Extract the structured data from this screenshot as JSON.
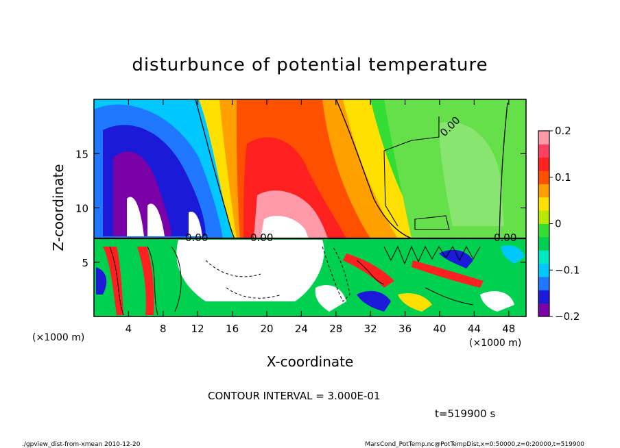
{
  "chart_data": {
    "type": "heatmap",
    "title": "disturbunce of potential temperature",
    "xlabel": "X-coordinate",
    "ylabel": "Z-coordinate",
    "x_unit": "(×1000 m)",
    "y_unit": "(×1000 m)",
    "xlim": [
      0,
      50
    ],
    "ylim": [
      0,
      20
    ],
    "x_ticks": [
      "4",
      "8",
      "12",
      "16",
      "20",
      "24",
      "28",
      "32",
      "36",
      "40",
      "44",
      "48"
    ],
    "y_ticks": [
      "5",
      "10",
      "15"
    ],
    "colorbar": {
      "range": [
        -0.2,
        0.2
      ],
      "ticks": [
        "0.2",
        "0.1",
        "0",
        "−0.1",
        "−0.2"
      ],
      "colors": [
        "#7a00a8",
        "#1a1ad8",
        "#1f78ff",
        "#00c8ff",
        "#00e8c0",
        "#00d050",
        "#33dd33",
        "#b8e800",
        "#ffe000",
        "#ffa000",
        "#ff5000",
        "#ff2020",
        "#ff4060",
        "#ff9aa8"
      ]
    },
    "contour_labels": [
      "0.00",
      "0.00",
      "0.00",
      "0.00"
    ],
    "annotation": "CONTOUR INTERVAL = 3.000E-01",
    "time_label": "t=519900 s"
  },
  "footer": {
    "left": "./gpview_dist-from-xmean   2010-12-20",
    "right": "MarsCond_PotTemp.nc@PotTempDist,x=0:50000,z=0:20000,t=519900"
  }
}
